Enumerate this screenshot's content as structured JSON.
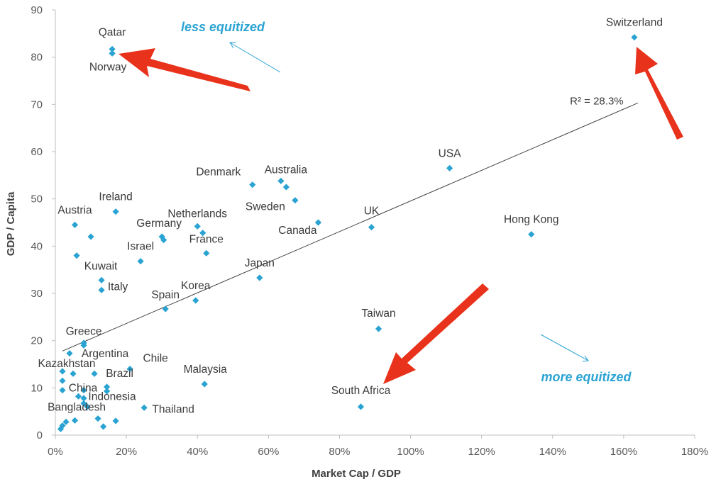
{
  "chart_data": {
    "type": "scatter",
    "xlabel": "Market Cap / GDP",
    "ylabel": "GDP / Capita",
    "xlim": [
      0,
      180
    ],
    "ylim": [
      0,
      90
    ],
    "x_ticks": [
      "0%",
      "20%",
      "40%",
      "60%",
      "80%",
      "100%",
      "120%",
      "140%",
      "160%",
      "180%"
    ],
    "y_ticks": [
      "0",
      "10",
      "20",
      "30",
      "40",
      "50",
      "60",
      "70",
      "80",
      "90"
    ],
    "grid": false,
    "marker_color": "#2aa3d2",
    "trendline": {
      "r2_label": "R² = 28.3%",
      "x": [
        2,
        164
      ],
      "y": [
        17.8,
        70.3
      ]
    },
    "annotations": {
      "less": "less equitized",
      "more": "more equitized",
      "color": "#2aa3d2"
    },
    "arrow_color": "#e8321c",
    "points": [
      {
        "label": "Qatar",
        "x": 16,
        "y": 81.7
      },
      {
        "label": "Norway",
        "x": 16,
        "y": 80.8
      },
      {
        "label": "Switzerland",
        "x": 163,
        "y": 84.2
      },
      {
        "label": "USA",
        "x": 111,
        "y": 56.5
      },
      {
        "label": "Denmark",
        "x": 55.5,
        "y": 53
      },
      {
        "label": "Australia",
        "x": 63.5,
        "y": 53.8
      },
      {
        "label": "",
        "x": 65,
        "y": 52.5
      },
      {
        "label": "Sweden",
        "x": 67.5,
        "y": 49.7
      },
      {
        "label": "Ireland",
        "x": 17,
        "y": 47.3
      },
      {
        "label": "Austria",
        "x": 5.5,
        "y": 44.5
      },
      {
        "label": "",
        "x": 10,
        "y": 42
      },
      {
        "label": "Netherlands",
        "x": 40,
        "y": 44.2
      },
      {
        "label": "",
        "x": 41.5,
        "y": 42.8
      },
      {
        "label": "Germany",
        "x": 30,
        "y": 42
      },
      {
        "label": "",
        "x": 30.5,
        "y": 41.3
      },
      {
        "label": "Canada",
        "x": 74,
        "y": 45
      },
      {
        "label": "UK",
        "x": 89,
        "y": 44
      },
      {
        "label": "Hong Kong",
        "x": 134,
        "y": 42.5
      },
      {
        "label": "France",
        "x": 42.5,
        "y": 38.5
      },
      {
        "label": "Israel",
        "x": 24,
        "y": 36.8
      },
      {
        "label": "",
        "x": 6,
        "y": 38
      },
      {
        "label": "Kuwait",
        "x": 13,
        "y": 32.8
      },
      {
        "label": "Italy",
        "x": 13,
        "y": 30.7
      },
      {
        "label": "Japan",
        "x": 57.5,
        "y": 33.3
      },
      {
        "label": "Korea",
        "x": 39.5,
        "y": 28.5
      },
      {
        "label": "Spain",
        "x": 31,
        "y": 26.7
      },
      {
        "label": "Taiwan",
        "x": 91,
        "y": 22.5
      },
      {
        "label": "Greece",
        "x": 8,
        "y": 19
      },
      {
        "label": "",
        "x": 4,
        "y": 17.3
      },
      {
        "label": "Argentina",
        "x": 8,
        "y": 19.5
      },
      {
        "label": "Chile",
        "x": 21,
        "y": 14
      },
      {
        "label": "Kazakhstan",
        "x": 2,
        "y": 13.5
      },
      {
        "label": "",
        "x": 5,
        "y": 13
      },
      {
        "label": "",
        "x": 11,
        "y": 13
      },
      {
        "label": "",
        "x": 2,
        "y": 11.5
      },
      {
        "label": "China",
        "x": 8,
        "y": 9.5
      },
      {
        "label": "Brazil",
        "x": 14.5,
        "y": 10.2
      },
      {
        "label": "",
        "x": 14.5,
        "y": 9.3
      },
      {
        "label": "",
        "x": 2,
        "y": 9.5
      },
      {
        "label": "",
        "x": 6.5,
        "y": 8.2
      },
      {
        "label": "",
        "x": 8,
        "y": 7.8
      },
      {
        "label": "Malaysia",
        "x": 42,
        "y": 10.8
      },
      {
        "label": "Indonesia",
        "x": 8,
        "y": 6.7
      },
      {
        "label": "",
        "x": 9,
        "y": 6
      },
      {
        "label": "Thailand",
        "x": 25,
        "y": 5.8
      },
      {
        "label": "South Africa",
        "x": 86,
        "y": 6
      },
      {
        "label": "",
        "x": 12,
        "y": 3.5
      },
      {
        "label": "",
        "x": 17,
        "y": 3
      },
      {
        "label": "",
        "x": 5.5,
        "y": 3.1
      },
      {
        "label": "Bangladesh",
        "x": 3,
        "y": 2.8
      },
      {
        "label": "",
        "x": 2,
        "y": 2
      },
      {
        "label": "",
        "x": 13.5,
        "y": 1.8
      },
      {
        "label": "",
        "x": 1.5,
        "y": 1.3
      }
    ]
  }
}
